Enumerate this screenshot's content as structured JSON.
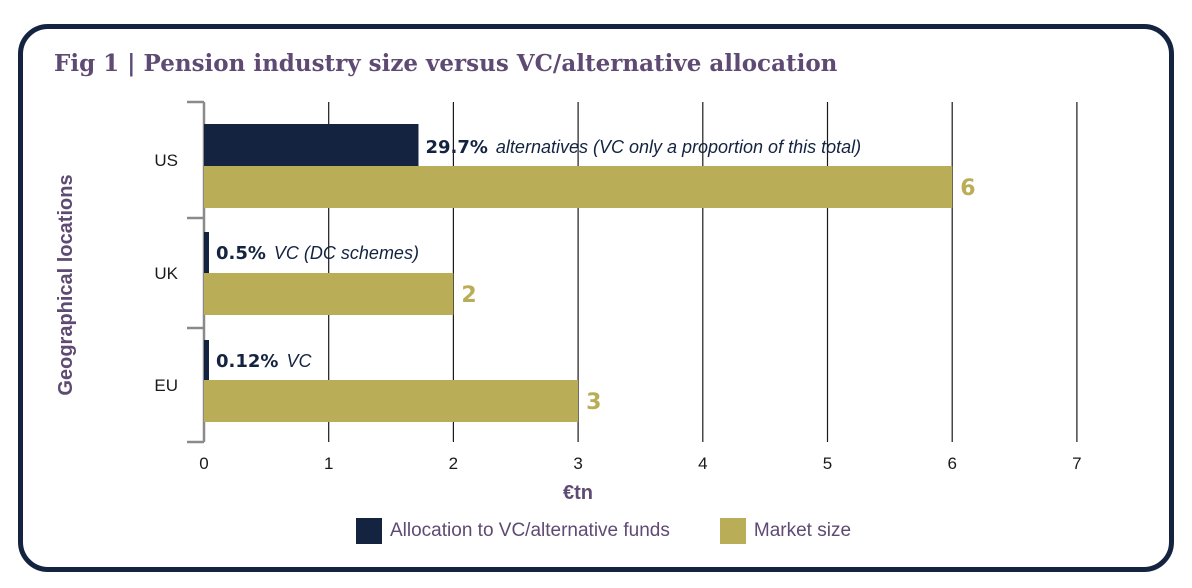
{
  "colors": {
    "frame": "#132340",
    "title": "#5e4a73",
    "series_allocation": "#132340",
    "series_market": "#b9ad57",
    "grid": "#1a1a1a"
  },
  "chart_data": {
    "type": "bar",
    "orientation": "horizontal",
    "title": "Fig 1 | Pension industry size versus VC/alternative allocation",
    "xlabel": "€tn",
    "ylabel": "Geographical locations",
    "xlim": [
      0,
      7
    ],
    "xticks": [
      "0",
      "1",
      "2",
      "3",
      "4",
      "5",
      "6",
      "7"
    ],
    "categories": [
      "US",
      "UK",
      "EU"
    ],
    "series": [
      {
        "name": "Allocation to VC/alternative funds",
        "values": [
          1.72,
          0.03,
          0.03
        ],
        "labels": [
          {
            "pct": "29.7%",
            "text": "alternatives (VC only a proportion of this total)"
          },
          {
            "pct": "0.5%",
            "text": "VC (DC schemes)"
          },
          {
            "pct": "0.12%",
            "text": "VC"
          }
        ]
      },
      {
        "name": "Market size",
        "values": [
          6,
          2,
          3
        ],
        "value_labels": [
          "6",
          "2",
          "3"
        ]
      }
    ],
    "legend": [
      "Allocation to VC/alternative funds",
      "Market size"
    ],
    "legend_position": "bottom"
  }
}
